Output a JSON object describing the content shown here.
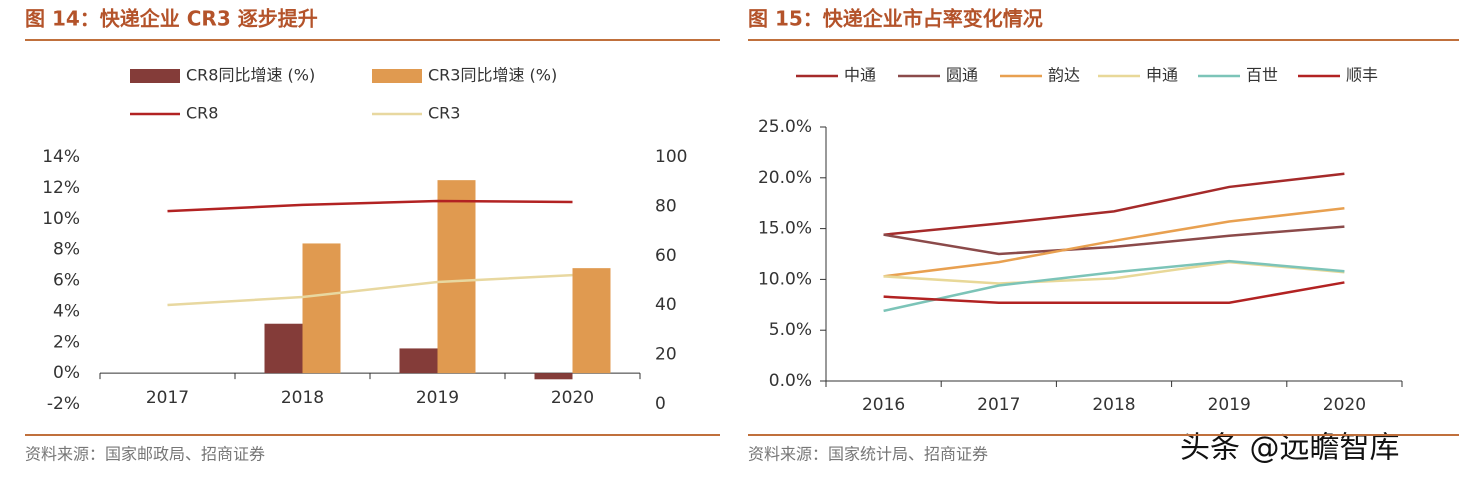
{
  "chart_data": [
    {
      "type": "bar",
      "title": "图 14：快递企业 CR3 逐步提升",
      "source": "资料来源：国家邮政局、招商证券",
      "categories": [
        "2017",
        "2018",
        "2019",
        "2020"
      ],
      "series": [
        {
          "name": "CR8同比增速 (%)",
          "type": "bar",
          "color": "#843c39",
          "values": [
            null,
            3.2,
            1.6,
            -0.4
          ]
        },
        {
          "name": "CR3同比增速 (%)",
          "type": "bar",
          "color": "#e09a50",
          "values": [
            null,
            8.4,
            12.5,
            6.8
          ]
        },
        {
          "name": "CR8",
          "type": "line",
          "axis": "y2",
          "color": "#b22222",
          "values": [
            78.1,
            80.6,
            82.2,
            81.8
          ]
        },
        {
          "name": "CR3",
          "type": "line",
          "axis": "y2",
          "color": "#e8d8a0",
          "values": [
            40.1,
            43.3,
            49.4,
            52.2
          ]
        }
      ],
      "ylim": [
        -2,
        14
      ],
      "yticks": [
        {
          "value": -2,
          "label": "-2%"
        },
        {
          "value": 0,
          "label": "0%"
        },
        {
          "value": 2,
          "label": "2%"
        },
        {
          "value": 4,
          "label": "4%"
        },
        {
          "value": 6,
          "label": "6%"
        },
        {
          "value": 8,
          "label": "8%"
        },
        {
          "value": 10,
          "label": "10%"
        },
        {
          "value": 12,
          "label": "12%"
        },
        {
          "value": 14,
          "label": "14%"
        }
      ],
      "y2lim": [
        0,
        100
      ],
      "y2ticks": [
        0,
        20,
        40,
        60,
        80,
        100
      ]
    },
    {
      "type": "line",
      "title": "图 15：快递企业市占率变化情况",
      "source": "资料来源：国家统计局、招商证券",
      "categories": [
        "2016",
        "2017",
        "2018",
        "2019",
        "2020"
      ],
      "series": [
        {
          "name": "中通",
          "color": "#a52a2a",
          "values": [
            14.4,
            15.5,
            16.7,
            19.1,
            20.4
          ]
        },
        {
          "name": "圆通",
          "color": "#8b4a4a",
          "values": [
            14.4,
            12.5,
            13.2,
            14.3,
            15.2
          ]
        },
        {
          "name": "韵达",
          "color": "#e8a050",
          "values": [
            10.3,
            11.7,
            13.8,
            15.7,
            17.0
          ]
        },
        {
          "name": "申通",
          "color": "#e8d898",
          "values": [
            10.3,
            9.6,
            10.1,
            11.7,
            10.7
          ]
        },
        {
          "name": "百世",
          "color": "#7cc4b8",
          "values": [
            6.9,
            9.4,
            10.7,
            11.8,
            10.8
          ]
        },
        {
          "name": "顺丰",
          "color": "#b22222",
          "values": [
            8.3,
            7.7,
            7.7,
            7.7,
            9.7
          ]
        }
      ],
      "ylim": [
        0,
        25
      ],
      "yticks": [
        {
          "value": 0,
          "label": "0.0%"
        },
        {
          "value": 5,
          "label": "5.0%"
        },
        {
          "value": 10,
          "label": "10.0%"
        },
        {
          "value": 15,
          "label": "15.0%"
        },
        {
          "value": 20,
          "label": "20.0%"
        },
        {
          "value": 25,
          "label": "25.0%"
        }
      ]
    }
  ],
  "watermark": "头条 @远瞻智库"
}
